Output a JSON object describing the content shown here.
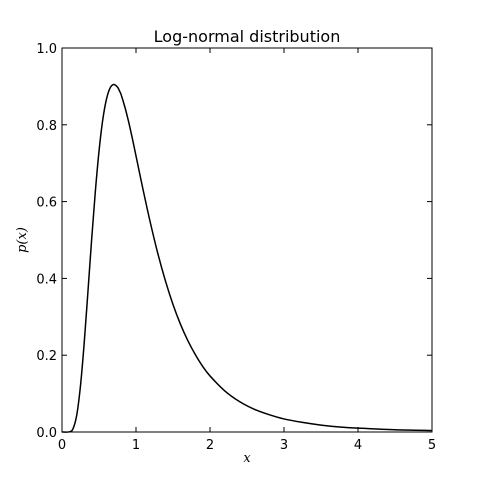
{
  "chart_data": {
    "type": "line",
    "title": "Log-normal distribution",
    "xlabel": "x",
    "ylabel": "p(x)",
    "xlim": [
      0,
      5
    ],
    "ylim": [
      0,
      1.0
    ],
    "grid": false,
    "x_ticks": [
      0,
      1,
      2,
      3,
      4,
      5
    ],
    "x_tick_labels": [
      "0",
      "1",
      "2",
      "3",
      "4",
      "5"
    ],
    "y_ticks": [
      0.0,
      0.2,
      0.4,
      0.6,
      0.8,
      1.0
    ],
    "y_tick_labels": [
      "0.0",
      "0.2",
      "0.4",
      "0.6",
      "0.8",
      "1.0"
    ],
    "series": [
      {
        "color": "#000000",
        "x": [
          0.0,
          0.1,
          0.15,
          0.2,
          0.25,
          0.3,
          0.35,
          0.4,
          0.45,
          0.5,
          0.55,
          0.6,
          0.65,
          0.7,
          0.75,
          0.78,
          0.8,
          0.85,
          0.9,
          0.95,
          1.0,
          1.1,
          1.2,
          1.3,
          1.4,
          1.5,
          1.6,
          1.7,
          1.8,
          1.9,
          2.0,
          2.2,
          2.4,
          2.6,
          2.8,
          3.0,
          3.25,
          3.5,
          3.75,
          4.0,
          4.5,
          5.0
        ],
        "y": [
          0.0,
          0.0005,
          0.009,
          0.045,
          0.121,
          0.232,
          0.364,
          0.5,
          0.625,
          0.731,
          0.812,
          0.866,
          0.896,
          0.905,
          0.898,
          0.887,
          0.878,
          0.846,
          0.808,
          0.765,
          0.719,
          0.627,
          0.54,
          0.461,
          0.392,
          0.332,
          0.281,
          0.238,
          0.202,
          0.171,
          0.146,
          0.107,
          0.079,
          0.059,
          0.045,
          0.034,
          0.025,
          0.018,
          0.013,
          0.01,
          0.006,
          0.004
        ]
      }
    ]
  }
}
